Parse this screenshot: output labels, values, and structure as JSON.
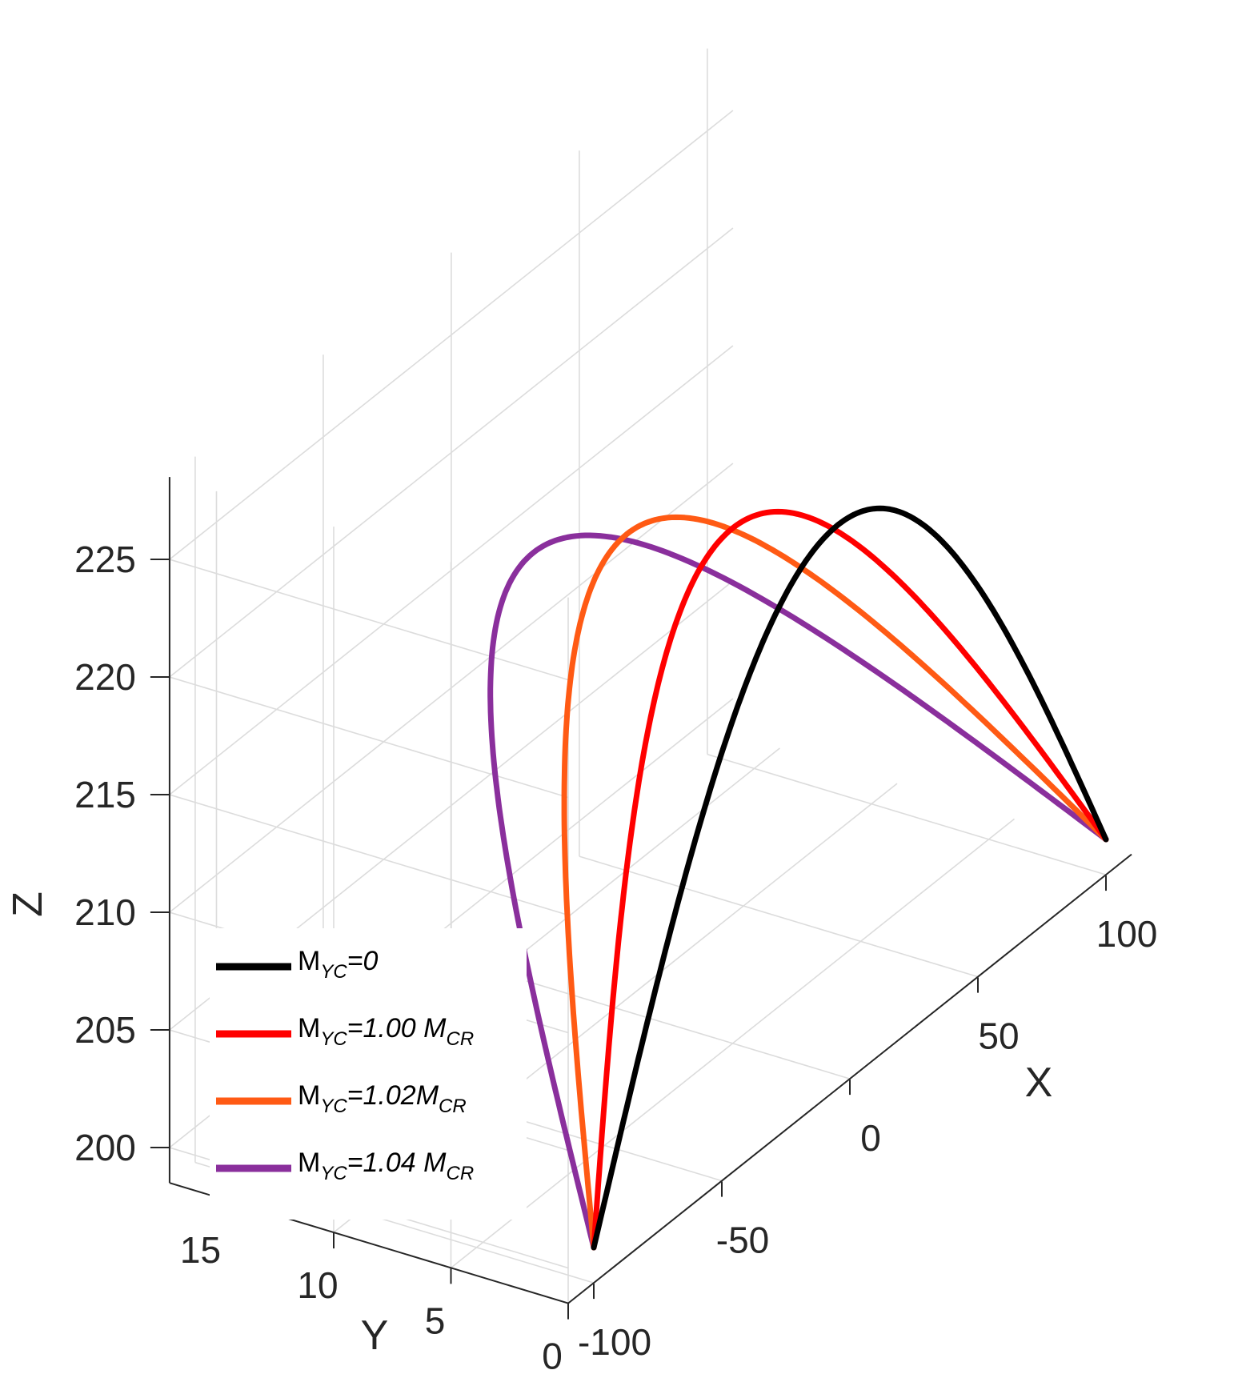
{
  "chart_data": {
    "type": "line",
    "view": "3d",
    "title": "",
    "xlabel": "X",
    "ylabel": "Y",
    "zlabel": "Z",
    "xlim": [
      -110,
      110
    ],
    "ylim": [
      0,
      17
    ],
    "zlim": [
      198.5,
      228.5
    ],
    "x_ticks": [
      -100,
      -50,
      0,
      50,
      100
    ],
    "x_tick_labels": [
      "-100",
      "-50",
      "0",
      "50",
      "100"
    ],
    "y_ticks": [
      0,
      5,
      10,
      15
    ],
    "y_tick_labels": [
      "0",
      "5",
      "10",
      "15"
    ],
    "z_ticks": [
      200,
      205,
      210,
      215,
      220,
      225
    ],
    "z_tick_labels": [
      "200",
      "205",
      "210",
      "215",
      "220",
      "225"
    ],
    "grid": true,
    "legend_position": "bottom-left",
    "series": [
      {
        "name": "M_YC=0",
        "label": {
          "base": "M",
          "sub": "YC",
          "rest": "=0",
          "base2": "",
          "sub2": ""
        },
        "color": "#000000",
        "x": [
          -100,
          -50,
          0,
          50,
          100
        ],
        "y_peak": 0.5,
        "z": [
          200,
          215.9,
          221.9,
          215.9,
          200
        ]
      },
      {
        "name": "M_YC=1.00 M_CR",
        "label": {
          "base": "M",
          "sub": "YC",
          "rest": "=1.00 ",
          "base2": "M",
          "sub2": "CR"
        },
        "color": "#ff0000",
        "x": [
          -100,
          -50,
          0,
          50,
          100
        ],
        "y_peak": 5,
        "z": [
          200,
          214.4,
          220.4,
          214.4,
          200
        ]
      },
      {
        "name": "M_YC=1.02M_CR",
        "label": {
          "base": "M",
          "sub": "YC",
          "rest": "=1.02",
          "base2": "M",
          "sub2": "CR"
        },
        "color": "#ff5a14",
        "x": [
          -100,
          -50,
          0,
          50,
          100
        ],
        "y_peak": 9.5,
        "z": [
          200,
          213.3,
          218.8,
          213.3,
          200
        ]
      },
      {
        "name": "M_YC=1.04 M_CR",
        "label": {
          "base": "M",
          "sub": "YC",
          "rest": "=1.04 ",
          "base2": "M",
          "sub2": "CR"
        },
        "color": "#8a2f9c",
        "x": [
          -100,
          -50,
          0,
          50,
          100
        ],
        "y_peak": 13.5,
        "z": [
          200,
          212.1,
          216.8,
          212.1,
          200
        ]
      }
    ]
  }
}
